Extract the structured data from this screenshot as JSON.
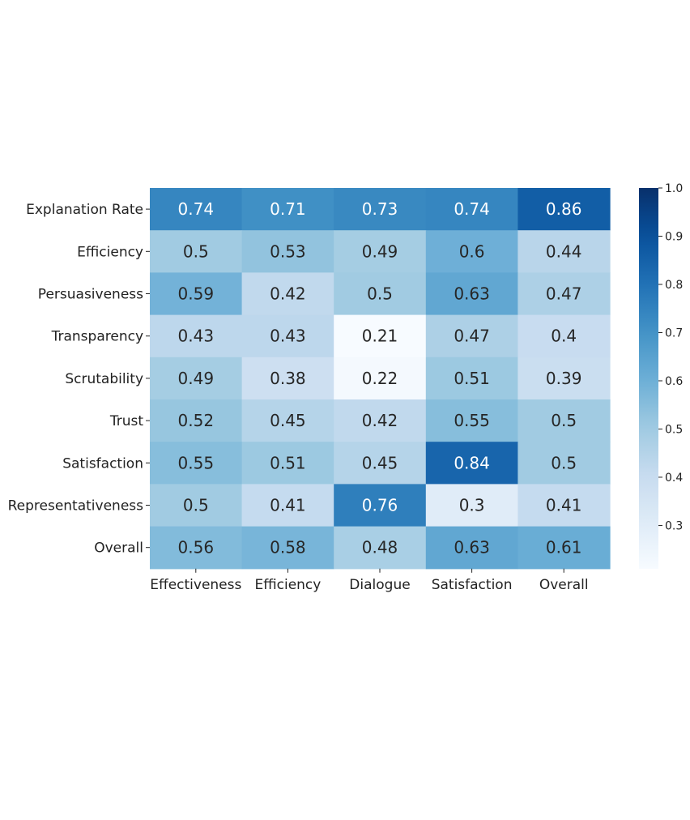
{
  "chart_data": {
    "type": "heatmap",
    "title": "",
    "xlabel": "",
    "ylabel": "",
    "x_categories": [
      "Effectiveness",
      "Efficiency",
      "Dialogue",
      "Satisfaction",
      "Overall"
    ],
    "y_categories": [
      "Explanation Rate",
      "Efficiency",
      "Persuasiveness",
      "Transparency",
      "Scrutability",
      "Trust",
      "Satisfaction",
      "Representativeness",
      "Overall"
    ],
    "values": [
      [
        0.74,
        0.71,
        0.73,
        0.74,
        0.86
      ],
      [
        0.5,
        0.53,
        0.49,
        0.6,
        0.44
      ],
      [
        0.59,
        0.42,
        0.5,
        0.63,
        0.47
      ],
      [
        0.43,
        0.43,
        0.21,
        0.47,
        0.4
      ],
      [
        0.49,
        0.38,
        0.22,
        0.51,
        0.39
      ],
      [
        0.52,
        0.45,
        0.42,
        0.55,
        0.5
      ],
      [
        0.55,
        0.51,
        0.45,
        0.84,
        0.5
      ],
      [
        0.5,
        0.41,
        0.76,
        0.3,
        0.41
      ],
      [
        0.56,
        0.58,
        0.48,
        0.63,
        0.61
      ]
    ],
    "colormap": "Blues",
    "vmin": 0.21,
    "vmax": 1.0,
    "colorbar_ticks": [
      "0.3",
      "0.4",
      "0.5",
      "0.6",
      "0.7",
      "0.8",
      "0.9",
      "1.0"
    ],
    "legend_position": "right",
    "grid": false
  }
}
